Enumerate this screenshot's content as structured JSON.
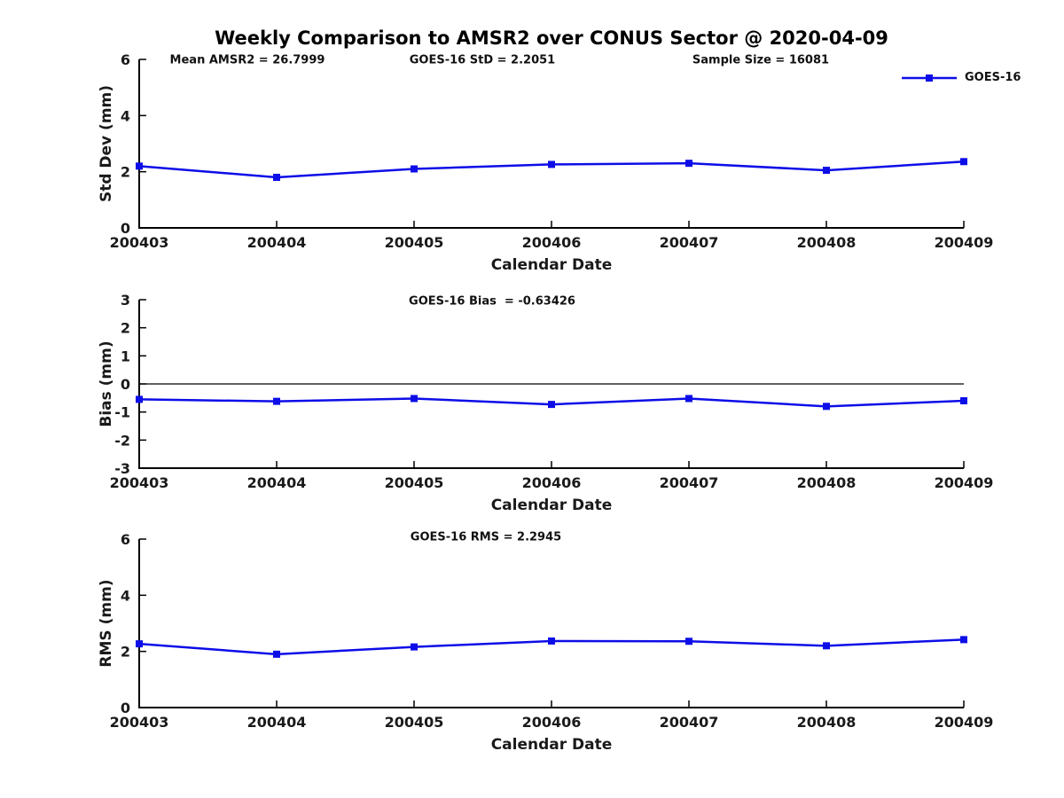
{
  "title": "Weekly Comparison to AMSR2 over CONUS Sector @ 2020-04-09",
  "legend": {
    "label": "GOES-16",
    "marker": "filled-square"
  },
  "colors": {
    "line": "#0d0de8",
    "axis": "#000000",
    "text": "#1a1a1a",
    "zero_line": "#000000"
  },
  "chart_data": [
    {
      "type": "line",
      "name": "std-dev-subplot",
      "annotations": [
        "Mean AMSR2 = 26.7999",
        "GOES-16 StD = 2.2051",
        "Sample Size = 16081"
      ],
      "x": [
        "200403",
        "200404",
        "200405",
        "200406",
        "200407",
        "200408",
        "200409"
      ],
      "series": [
        {
          "name": "GOES-16",
          "values": [
            2.2,
            1.8,
            2.1,
            2.26,
            2.3,
            2.05,
            2.36
          ]
        }
      ],
      "xlabel": "Calendar Date",
      "ylabel": "Std Dev (mm)",
      "ylim": [
        0,
        6
      ],
      "yticks": [
        0,
        2,
        4,
        6
      ],
      "grid": false,
      "zero_line": false,
      "legend_position": "top-right-outside"
    },
    {
      "type": "line",
      "name": "bias-subplot",
      "annotations": [
        "GOES-16 Bias  = -0.63426"
      ],
      "x": [
        "200403",
        "200404",
        "200405",
        "200406",
        "200407",
        "200408",
        "200409"
      ],
      "series": [
        {
          "name": "GOES-16",
          "values": [
            -0.55,
            -0.62,
            -0.52,
            -0.73,
            -0.52,
            -0.8,
            -0.6
          ]
        }
      ],
      "xlabel": "Calendar Date",
      "ylabel": "Bias (mm)",
      "ylim": [
        -3,
        3
      ],
      "yticks": [
        -3,
        -2,
        -1,
        0,
        1,
        2,
        3
      ],
      "grid": false,
      "zero_line": true,
      "legend_position": "none"
    },
    {
      "type": "line",
      "name": "rms-subplot",
      "annotations": [
        "GOES-16 RMS = 2.2945"
      ],
      "x": [
        "200403",
        "200404",
        "200405",
        "200406",
        "200407",
        "200408",
        "200409"
      ],
      "series": [
        {
          "name": "GOES-16",
          "values": [
            2.27,
            1.9,
            2.16,
            2.37,
            2.36,
            2.2,
            2.42
          ]
        }
      ],
      "xlabel": "Calendar Date",
      "ylabel": "RMS (mm)",
      "ylim": [
        0,
        6
      ],
      "yticks": [
        0,
        2,
        4,
        6
      ],
      "grid": false,
      "zero_line": false,
      "legend_position": "none"
    }
  ]
}
